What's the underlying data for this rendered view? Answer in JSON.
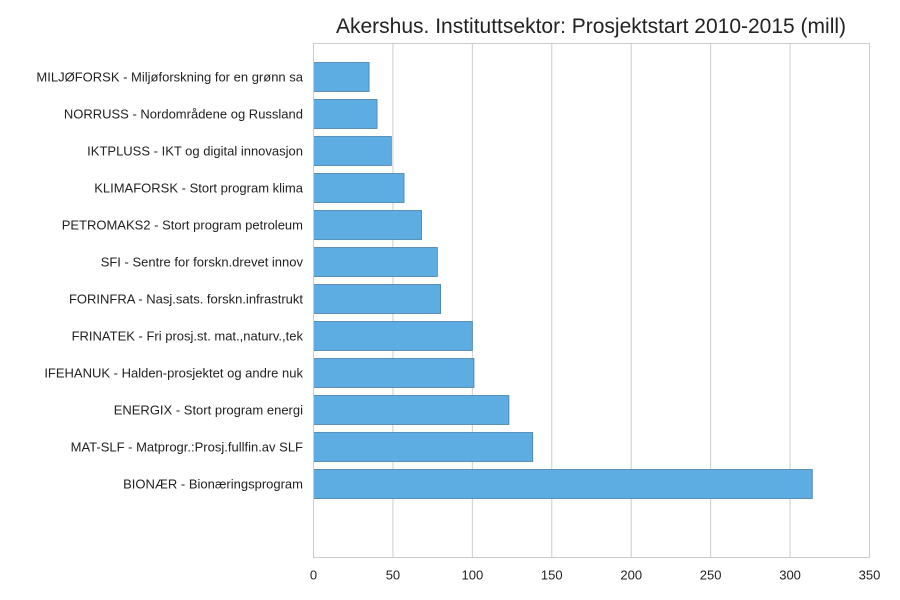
{
  "chart_data": {
    "type": "bar",
    "orientation": "horizontal",
    "title": "Akershus. Instituttsektor: Prosjektstart 2010-2015 (mill)",
    "xlabel": "",
    "ylabel": "",
    "categories": [
      "MILJØFORSK - Miljøforskning for en grønn sa",
      "NORRUSS - Nordområdene og Russland",
      "IKTPLUSS - IKT og digital innovasjon",
      "KLIMAFORSK - Stort program klima",
      "PETROMAKS2 - Stort program petroleum",
      "SFI - Sentre for forskn.drevet innov",
      "FORINFRA - Nasj.sats. forskn.infrastrukt",
      "FRINATEK - Fri prosj.st. mat.,naturv.,tek",
      "IFEHANUK - Halden-prosjektet og andre nuk",
      "ENERGIX - Stort program energi",
      "MAT-SLF - Matprogr.:Prosj.fullfin.av SLF",
      "BIONÆR - Bionæringsprogram"
    ],
    "values": [
      35,
      40,
      49,
      57,
      68,
      78,
      80,
      100,
      101,
      123,
      138,
      314
    ],
    "xlim": [
      0,
      350
    ],
    "xticks": [
      0,
      50,
      100,
      150,
      200,
      250,
      300,
      350
    ],
    "grid": "vertical",
    "bar_color": "#5dade2"
  }
}
